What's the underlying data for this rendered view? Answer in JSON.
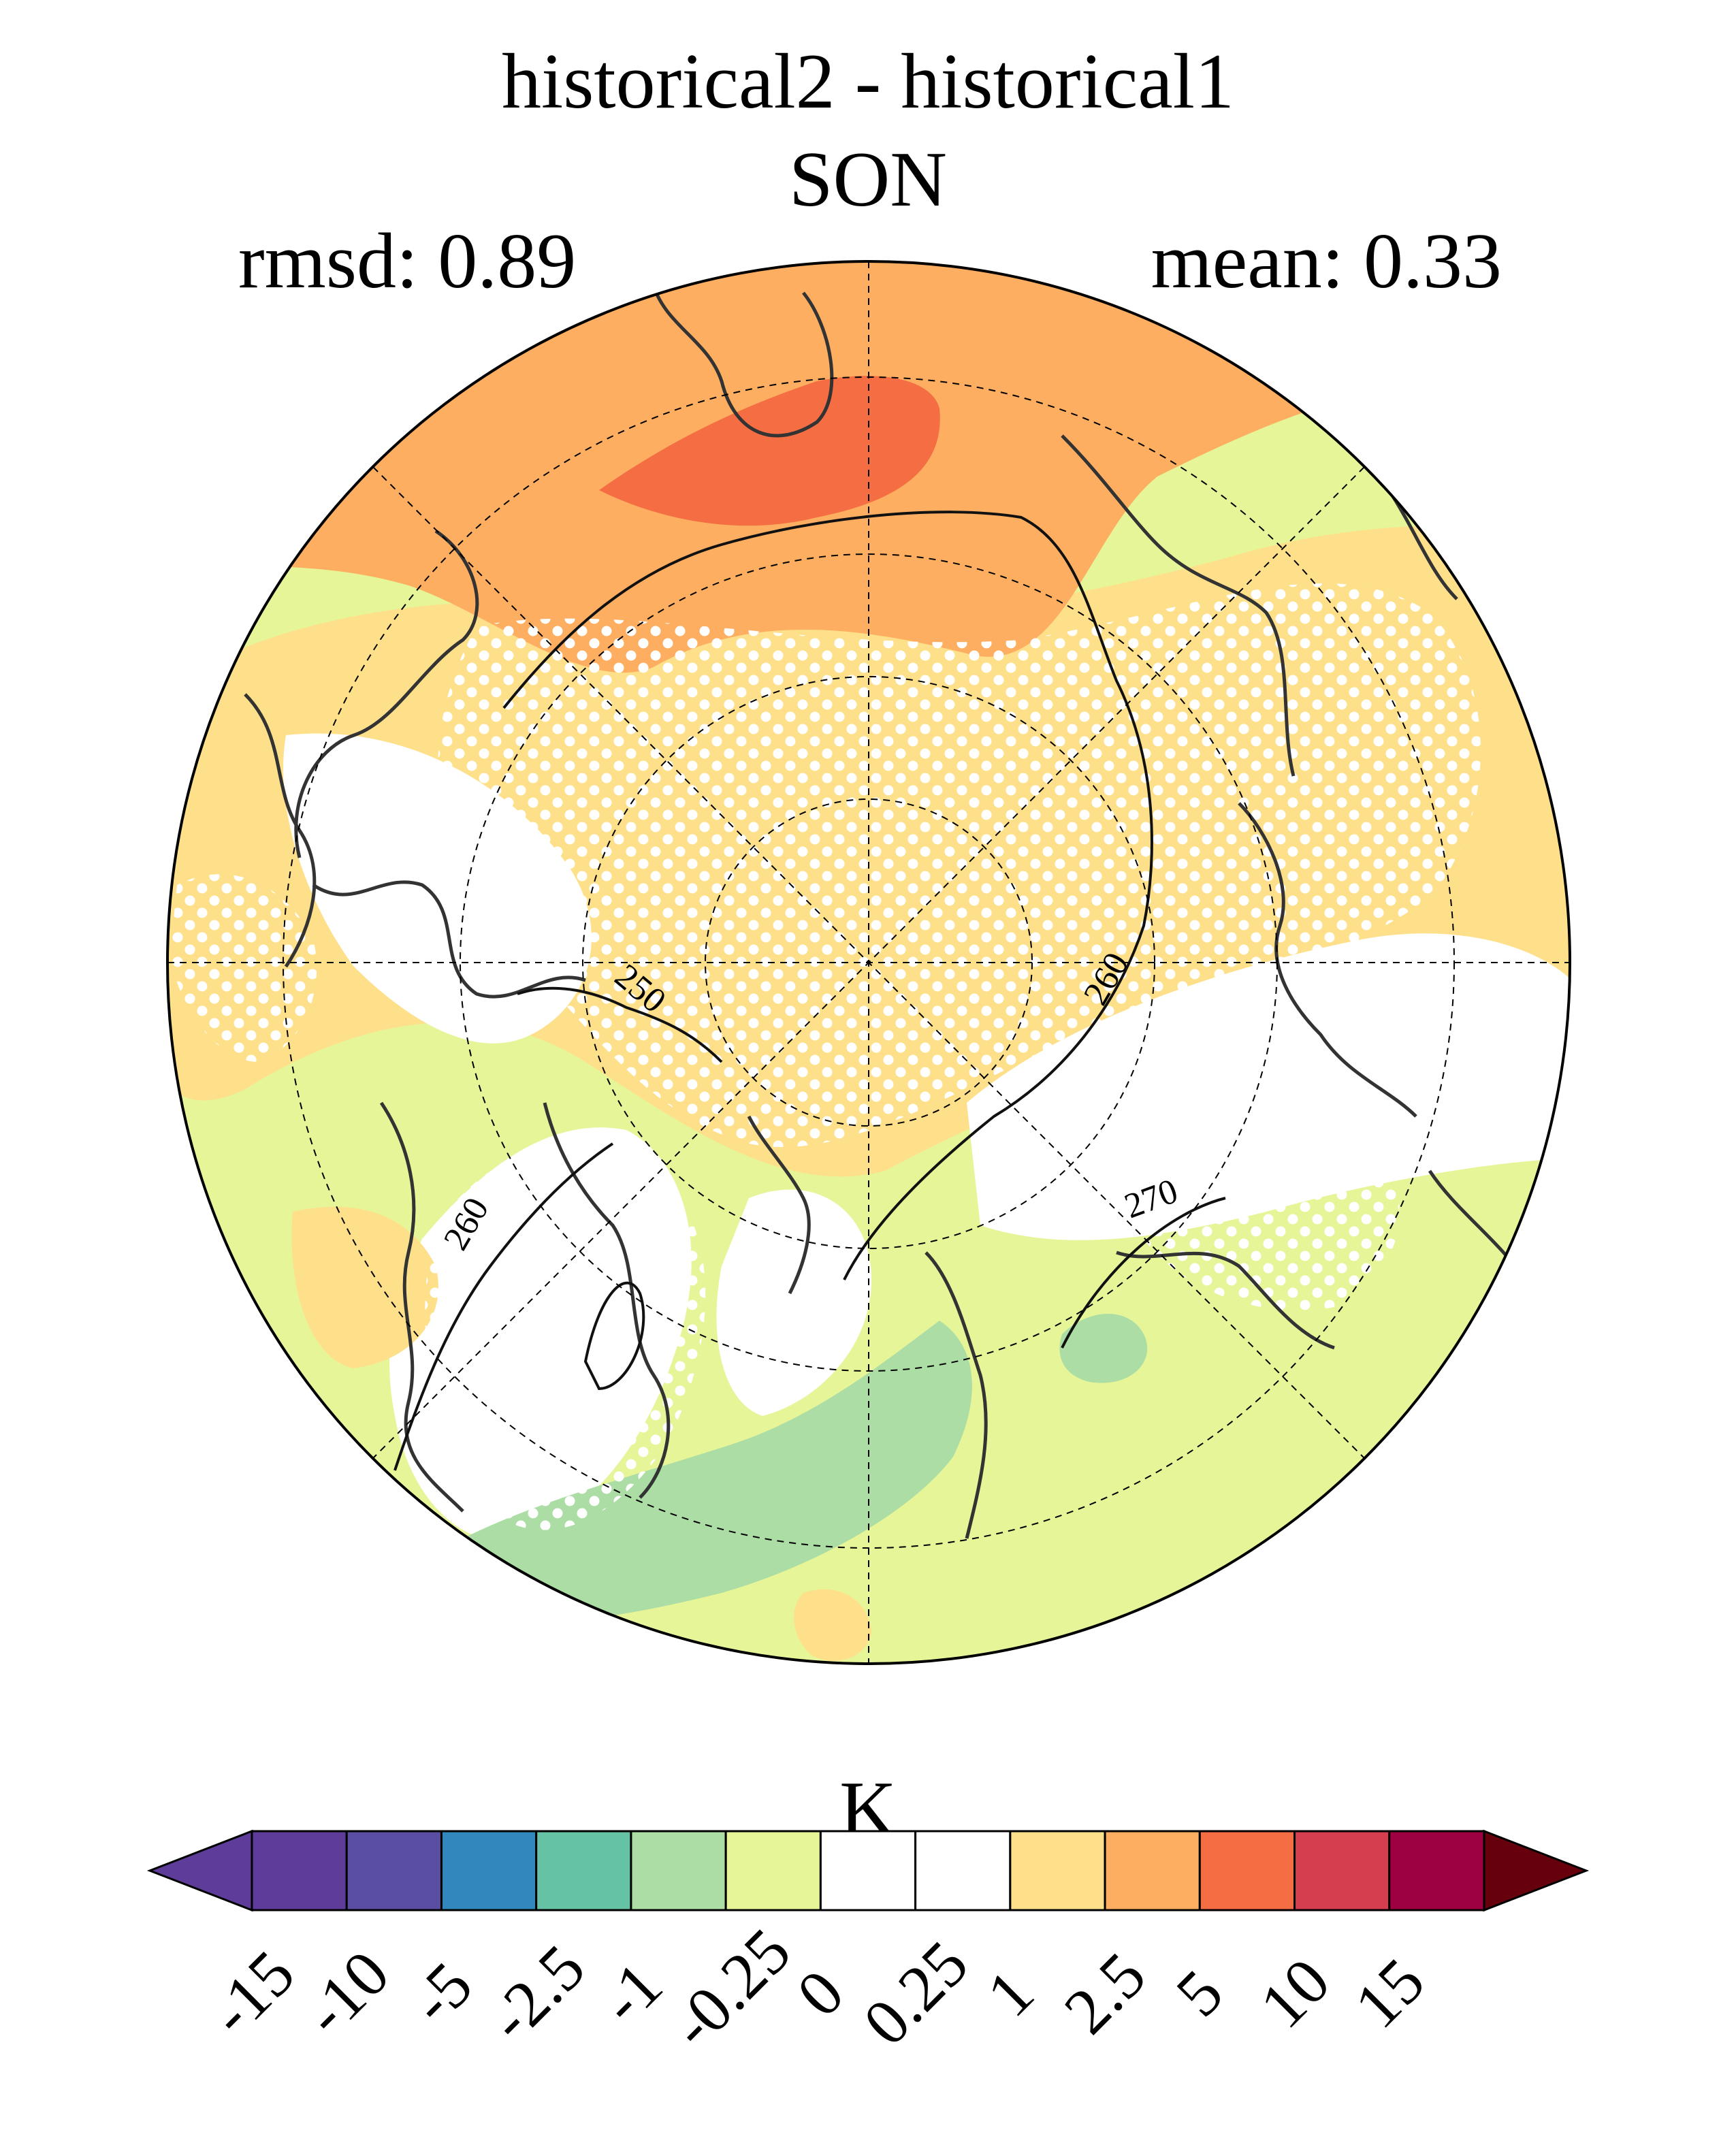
{
  "title_line1": "historical2 - historical1",
  "title_line2": "SON",
  "stats": {
    "rmsd": "rmsd: 0.89",
    "mean": "mean: 0.33"
  },
  "colorbar": {
    "unit": "K",
    "ticks": [
      "-15",
      "-10",
      "-5",
      "-2.5",
      "-1",
      "-0.25",
      "0",
      "0.25",
      "1",
      "2.5",
      "5",
      "10",
      "15"
    ],
    "colors": [
      "#5e3c99",
      "#5a4ea2",
      "#3288bd",
      "#66c2a5",
      "#abdda4",
      "#e6f598",
      "#ffffff",
      "#ffffff",
      "#fee08b",
      "#fdae61",
      "#f46d43",
      "#d53e4f",
      "#9e0142"
    ],
    "under_color": "#5e3c99",
    "over_color": "#67000d"
  },
  "contour_labels": [
    "250",
    "260",
    "260",
    "270"
  ],
  "map_style": {
    "projection": "north-polar-stereographic",
    "stippling": "white dots mark significant regions",
    "contours": "black lines of absolute temperature"
  }
}
